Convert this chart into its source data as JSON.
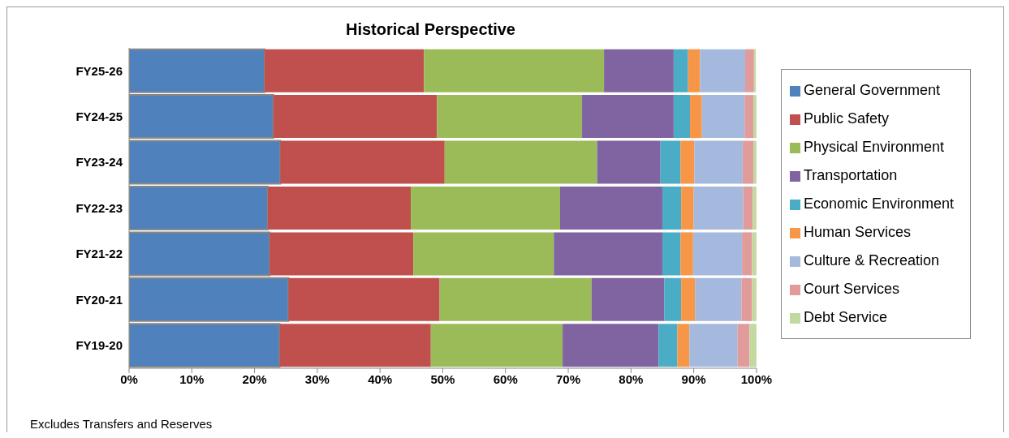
{
  "chart_data": {
    "type": "bar",
    "orientation": "horizontal",
    "stacked": true,
    "title": "Historical Perspective",
    "categories": [
      "FY25-26",
      "FY24-25",
      "FY23-24",
      "FY22-23",
      "FY21-22",
      "FY20-21",
      "FY19-20"
    ],
    "series": [
      {
        "name": "General Government",
        "color": "#4f81bd",
        "values": [
          21.6,
          23.0,
          24.1,
          22.1,
          22.4,
          25.4,
          24.0
        ]
      },
      {
        "name": "Public Safety",
        "color": "#c0504d",
        "values": [
          25.4,
          26.1,
          26.2,
          22.8,
          22.9,
          24.1,
          24.1
        ]
      },
      {
        "name": "Physical Environment",
        "color": "#9bbb59",
        "values": [
          28.7,
          23.1,
          24.3,
          23.8,
          22.4,
          24.2,
          21.0
        ]
      },
      {
        "name": "Transportation",
        "color": "#8064a2",
        "values": [
          11.1,
          14.6,
          10.1,
          16.3,
          17.3,
          11.6,
          15.3
        ]
      },
      {
        "name": "Economic Environment",
        "color": "#4bacc6",
        "values": [
          2.3,
          2.6,
          3.2,
          3.0,
          2.9,
          2.7,
          3.0
        ]
      },
      {
        "name": "Human Services",
        "color": "#f79646",
        "values": [
          1.9,
          1.9,
          2.2,
          2.0,
          2.0,
          2.2,
          1.9
        ]
      },
      {
        "name": "Culture & Recreation",
        "color": "#a5b9de",
        "values": [
          7.2,
          6.8,
          7.7,
          7.9,
          7.8,
          7.4,
          7.7
        ]
      },
      {
        "name": "Court Services",
        "color": "#e29b9b",
        "values": [
          1.4,
          1.4,
          1.7,
          1.5,
          1.6,
          1.7,
          1.9
        ]
      },
      {
        "name": "Debt Service",
        "color": "#c4d9a0",
        "values": [
          0.3,
          0.5,
          0.5,
          0.6,
          0.7,
          0.7,
          1.1
        ]
      }
    ],
    "xlim": [
      0,
      100
    ],
    "xticks": [
      {
        "value": 0,
        "label": "0%"
      },
      {
        "value": 10,
        "label": "10%"
      },
      {
        "value": 20,
        "label": "20%"
      },
      {
        "value": 30,
        "label": "30%"
      },
      {
        "value": 40,
        "label": "40%"
      },
      {
        "value": 50,
        "label": "50%"
      },
      {
        "value": 60,
        "label": "60%"
      },
      {
        "value": 70,
        "label": "70%"
      },
      {
        "value": 80,
        "label": "80%"
      },
      {
        "value": 90,
        "label": "90%"
      },
      {
        "value": 100,
        "label": "100%"
      }
    ],
    "grid": false,
    "legend": "right",
    "annotations": [
      "Excludes Transfers and Reserves"
    ]
  }
}
